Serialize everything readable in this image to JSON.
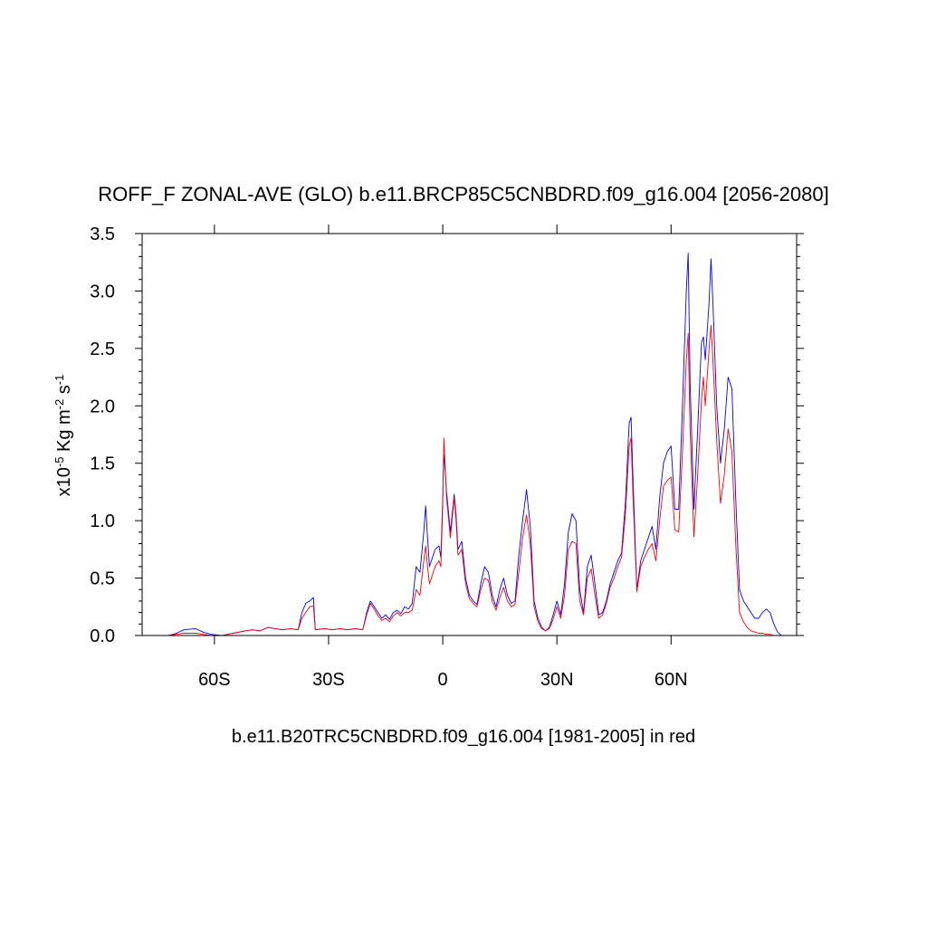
{
  "chart_data": {
    "type": "line",
    "title": "ROFF_F ZONAL-AVE (GLO) b.e11.BRCP85C5CNBDRD.f09_g16.004 [2056-2080]",
    "xlabel": "b.e11.B20TRC5CNBDRD.f09_g16.004 [1981-2005] in red",
    "ylabel": {
      "prefix": "x10",
      "exp1": "-5",
      "mid": " Kg m",
      "exp2": "-2",
      "mid2": " s",
      "exp3": "-1"
    },
    "xlim": [
      -79,
      93
    ],
    "ylim": [
      0,
      3.5
    ],
    "xticks": [
      {
        "value": -60,
        "label": "60S"
      },
      {
        "value": -30,
        "label": "30S"
      },
      {
        "value": 0,
        "label": "0"
      },
      {
        "value": 30,
        "label": "30N"
      },
      {
        "value": 60,
        "label": "60N"
      }
    ],
    "yticks": [
      {
        "value": 0,
        "label": "0.0"
      },
      {
        "value": 0.5,
        "label": "0.5"
      },
      {
        "value": 1.0,
        "label": "1.0"
      },
      {
        "value": 1.5,
        "label": "1.5"
      },
      {
        "value": 2.0,
        "label": "2.0"
      },
      {
        "value": 2.5,
        "label": "2.5"
      },
      {
        "value": 3.0,
        "label": "3.0"
      },
      {
        "value": 3.5,
        "label": "3.5"
      }
    ],
    "series": [
      {
        "color": "#0000ff",
        "points": [
          [
            -72,
            0.0
          ],
          [
            -70,
            0.02
          ],
          [
            -68,
            0.05
          ],
          [
            -65,
            0.06
          ],
          [
            -63,
            0.03
          ],
          [
            -61,
            0.01
          ],
          [
            -58,
            0.0
          ],
          [
            -55,
            0.02
          ],
          [
            -52,
            0.04
          ],
          [
            -50,
            0.05
          ],
          [
            -48,
            0.04
          ],
          [
            -46,
            0.07
          ],
          [
            -44,
            0.06
          ],
          [
            -42,
            0.05
          ],
          [
            -40,
            0.06
          ],
          [
            -38,
            0.05
          ],
          [
            -37,
            0.2
          ],
          [
            -36,
            0.28
          ],
          [
            -35,
            0.3
          ],
          [
            -34,
            0.33
          ],
          [
            -33.5,
            0.05
          ],
          [
            -31,
            0.06
          ],
          [
            -29,
            0.05
          ],
          [
            -27,
            0.06
          ],
          [
            -25,
            0.05
          ],
          [
            -23,
            0.06
          ],
          [
            -21,
            0.05
          ],
          [
            -20,
            0.2
          ],
          [
            -19,
            0.3
          ],
          [
            -18,
            0.25
          ],
          [
            -17,
            0.2
          ],
          [
            -16,
            0.15
          ],
          [
            -15,
            0.18
          ],
          [
            -14,
            0.14
          ],
          [
            -13,
            0.2
          ],
          [
            -12,
            0.22
          ],
          [
            -11,
            0.19
          ],
          [
            -10,
            0.25
          ],
          [
            -9,
            0.23
          ],
          [
            -8,
            0.28
          ],
          [
            -7,
            0.6
          ],
          [
            -6,
            0.55
          ],
          [
            -5,
            0.9
          ],
          [
            -4.5,
            1.13
          ],
          [
            -4,
            0.85
          ],
          [
            -3.5,
            0.6
          ],
          [
            -3,
            0.65
          ],
          [
            -2,
            0.75
          ],
          [
            -1,
            0.78
          ],
          [
            -0.5,
            0.68
          ],
          [
            0,
            1.2
          ],
          [
            0.3,
            1.58
          ],
          [
            0.6,
            1.45
          ],
          [
            1,
            1.25
          ],
          [
            2,
            0.9
          ],
          [
            3,
            1.23
          ],
          [
            3.5,
            1.05
          ],
          [
            4,
            0.75
          ],
          [
            5,
            0.82
          ],
          [
            6,
            0.5
          ],
          [
            7,
            0.35
          ],
          [
            8,
            0.3
          ],
          [
            9,
            0.27
          ],
          [
            10,
            0.45
          ],
          [
            11,
            0.6
          ],
          [
            12,
            0.55
          ],
          [
            13,
            0.35
          ],
          [
            14,
            0.25
          ],
          [
            15,
            0.4
          ],
          [
            16,
            0.5
          ],
          [
            17,
            0.35
          ],
          [
            18,
            0.28
          ],
          [
            19,
            0.3
          ],
          [
            20,
            0.7
          ],
          [
            21,
            1.0
          ],
          [
            22,
            1.27
          ],
          [
            23,
            0.95
          ],
          [
            24,
            0.3
          ],
          [
            25,
            0.15
          ],
          [
            26,
            0.07
          ],
          [
            27,
            0.04
          ],
          [
            28,
            0.07
          ],
          [
            29,
            0.18
          ],
          [
            30,
            0.3
          ],
          [
            31,
            0.18
          ],
          [
            32,
            0.45
          ],
          [
            33,
            0.9
          ],
          [
            34,
            1.06
          ],
          [
            35,
            1.0
          ],
          [
            36,
            0.4
          ],
          [
            37,
            0.2
          ],
          [
            38,
            0.6
          ],
          [
            39,
            0.7
          ],
          [
            40,
            0.45
          ],
          [
            41,
            0.18
          ],
          [
            42,
            0.2
          ],
          [
            43,
            0.3
          ],
          [
            44,
            0.45
          ],
          [
            45,
            0.55
          ],
          [
            46,
            0.65
          ],
          [
            47,
            0.72
          ],
          [
            48,
            1.15
          ],
          [
            49,
            1.85
          ],
          [
            49.5,
            1.9
          ],
          [
            50,
            1.35
          ],
          [
            51,
            0.4
          ],
          [
            52,
            0.65
          ],
          [
            53,
            0.75
          ],
          [
            54,
            0.85
          ],
          [
            55,
            0.95
          ],
          [
            56,
            0.75
          ],
          [
            57,
            1.2
          ],
          [
            58,
            1.5
          ],
          [
            59,
            1.6
          ],
          [
            60,
            1.65
          ],
          [
            61,
            1.1
          ],
          [
            62,
            1.1
          ],
          [
            63,
            2.0
          ],
          [
            64,
            3.0
          ],
          [
            64.5,
            3.33
          ],
          [
            65,
            2.2
          ],
          [
            66,
            1.1
          ],
          [
            67,
            1.8
          ],
          [
            68,
            2.55
          ],
          [
            68.5,
            2.6
          ],
          [
            69,
            2.4
          ],
          [
            70,
            2.9
          ],
          [
            70.5,
            3.28
          ],
          [
            71,
            2.9
          ],
          [
            72,
            2.0
          ],
          [
            73,
            1.5
          ],
          [
            74,
            1.8
          ],
          [
            75,
            2.25
          ],
          [
            76,
            2.15
          ],
          [
            77,
            1.2
          ],
          [
            78,
            0.4
          ],
          [
            79,
            0.3
          ],
          [
            80,
            0.25
          ],
          [
            81,
            0.2
          ],
          [
            82,
            0.15
          ],
          [
            83,
            0.15
          ],
          [
            84,
            0.2
          ],
          [
            85,
            0.23
          ],
          [
            86,
            0.2
          ],
          [
            87,
            0.1
          ],
          [
            88,
            0.03
          ],
          [
            89,
            0.0
          ]
        ]
      },
      {
        "color": "#ff0000",
        "points": [
          [
            -72,
            0.0
          ],
          [
            -70,
            0.01
          ],
          [
            -68,
            0.02
          ],
          [
            -65,
            0.02
          ],
          [
            -63,
            0.01
          ],
          [
            -61,
            0.0
          ],
          [
            -58,
            0.0
          ],
          [
            -55,
            0.02
          ],
          [
            -52,
            0.04
          ],
          [
            -50,
            0.05
          ],
          [
            -48,
            0.04
          ],
          [
            -46,
            0.07
          ],
          [
            -44,
            0.06
          ],
          [
            -42,
            0.05
          ],
          [
            -40,
            0.06
          ],
          [
            -38,
            0.05
          ],
          [
            -37,
            0.15
          ],
          [
            -36,
            0.2
          ],
          [
            -35,
            0.25
          ],
          [
            -34,
            0.26
          ],
          [
            -33.5,
            0.05
          ],
          [
            -31,
            0.06
          ],
          [
            -29,
            0.05
          ],
          [
            -27,
            0.06
          ],
          [
            -25,
            0.05
          ],
          [
            -23,
            0.06
          ],
          [
            -21,
            0.05
          ],
          [
            -20,
            0.18
          ],
          [
            -19,
            0.28
          ],
          [
            -18,
            0.23
          ],
          [
            -17,
            0.17
          ],
          [
            -16,
            0.13
          ],
          [
            -15,
            0.15
          ],
          [
            -14,
            0.12
          ],
          [
            -13,
            0.17
          ],
          [
            -12,
            0.2
          ],
          [
            -11,
            0.17
          ],
          [
            -10,
            0.2
          ],
          [
            -9,
            0.2
          ],
          [
            -8,
            0.22
          ],
          [
            -7,
            0.4
          ],
          [
            -6,
            0.35
          ],
          [
            -5,
            0.65
          ],
          [
            -4.5,
            0.78
          ],
          [
            -4,
            0.6
          ],
          [
            -3.5,
            0.45
          ],
          [
            -3,
            0.5
          ],
          [
            -2,
            0.6
          ],
          [
            -1,
            0.65
          ],
          [
            -0.5,
            0.6
          ],
          [
            0,
            1.15
          ],
          [
            0.3,
            1.72
          ],
          [
            0.6,
            1.5
          ],
          [
            1,
            1.2
          ],
          [
            2,
            0.85
          ],
          [
            3,
            1.2
          ],
          [
            3.5,
            1.0
          ],
          [
            4,
            0.7
          ],
          [
            5,
            0.75
          ],
          [
            6,
            0.45
          ],
          [
            7,
            0.32
          ],
          [
            8,
            0.28
          ],
          [
            9,
            0.25
          ],
          [
            10,
            0.4
          ],
          [
            11,
            0.5
          ],
          [
            12,
            0.48
          ],
          [
            13,
            0.3
          ],
          [
            14,
            0.22
          ],
          [
            15,
            0.33
          ],
          [
            16,
            0.42
          ],
          [
            17,
            0.3
          ],
          [
            18,
            0.25
          ],
          [
            19,
            0.27
          ],
          [
            20,
            0.55
          ],
          [
            21,
            0.85
          ],
          [
            22,
            1.05
          ],
          [
            23,
            0.8
          ],
          [
            24,
            0.25
          ],
          [
            25,
            0.12
          ],
          [
            26,
            0.06
          ],
          [
            27,
            0.04
          ],
          [
            28,
            0.06
          ],
          [
            29,
            0.14
          ],
          [
            30,
            0.25
          ],
          [
            31,
            0.15
          ],
          [
            32,
            0.35
          ],
          [
            33,
            0.75
          ],
          [
            34,
            0.82
          ],
          [
            35,
            0.8
          ],
          [
            36,
            0.3
          ],
          [
            37,
            0.18
          ],
          [
            38,
            0.5
          ],
          [
            39,
            0.58
          ],
          [
            40,
            0.35
          ],
          [
            41,
            0.15
          ],
          [
            42,
            0.18
          ],
          [
            43,
            0.28
          ],
          [
            44,
            0.42
          ],
          [
            45,
            0.5
          ],
          [
            46,
            0.6
          ],
          [
            47,
            0.68
          ],
          [
            48,
            1.05
          ],
          [
            49,
            1.65
          ],
          [
            49.5,
            1.72
          ],
          [
            50,
            1.2
          ],
          [
            51,
            0.38
          ],
          [
            52,
            0.6
          ],
          [
            53,
            0.68
          ],
          [
            54,
            0.75
          ],
          [
            55,
            0.8
          ],
          [
            56,
            0.65
          ],
          [
            57,
            1.0
          ],
          [
            58,
            1.3
          ],
          [
            59,
            1.35
          ],
          [
            60,
            1.38
          ],
          [
            61,
            0.92
          ],
          [
            62,
            0.9
          ],
          [
            63,
            1.6
          ],
          [
            64,
            2.4
          ],
          [
            64.5,
            2.63
          ],
          [
            65,
            1.8
          ],
          [
            66,
            0.86
          ],
          [
            67,
            1.4
          ],
          [
            68,
            2.05
          ],
          [
            68.5,
            2.25
          ],
          [
            69,
            2.0
          ],
          [
            70,
            2.5
          ],
          [
            70.5,
            2.7
          ],
          [
            71,
            2.4
          ],
          [
            72,
            1.7
          ],
          [
            73,
            1.15
          ],
          [
            74,
            1.4
          ],
          [
            75,
            1.8
          ],
          [
            76,
            1.6
          ],
          [
            77,
            0.8
          ],
          [
            78,
            0.2
          ],
          [
            79,
            0.12
          ],
          [
            80,
            0.07
          ],
          [
            81,
            0.04
          ],
          [
            82,
            0.03
          ],
          [
            83,
            0.02
          ],
          [
            84,
            0.02
          ],
          [
            85,
            0.01
          ],
          [
            86,
            0.01
          ],
          [
            87,
            0.0
          ],
          [
            88,
            0.0
          ],
          [
            89,
            0.0
          ]
        ]
      }
    ]
  }
}
